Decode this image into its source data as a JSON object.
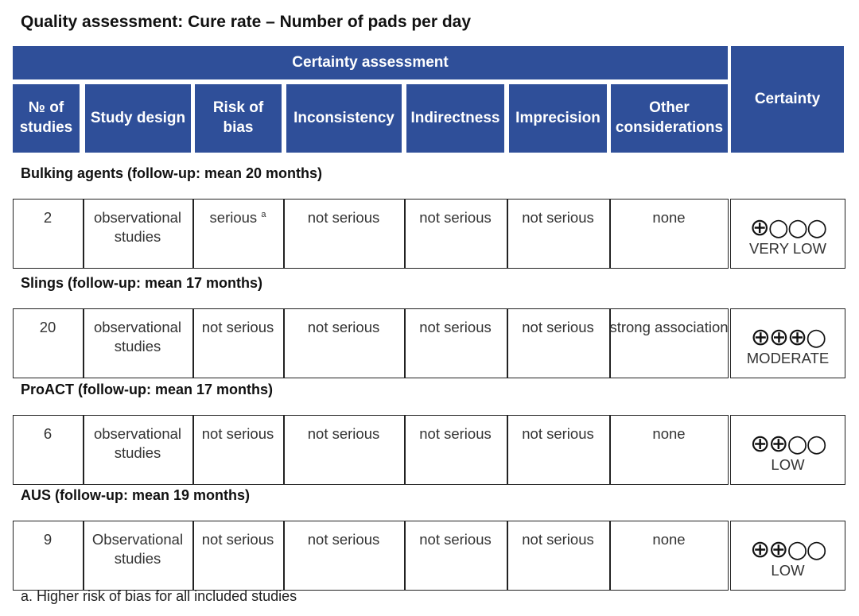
{
  "title": "Quality assessment:  Cure rate – Number of pads per day",
  "table": {
    "group_header": "Certainty assessment",
    "certainty_header": "Certainty",
    "columns": [
      "№ of studies",
      "Study design",
      "Risk of bias",
      "Inconsistency",
      "Indirectness",
      "Imprecision",
      "Other considerations"
    ],
    "groups": [
      {
        "label": "Bulking agents (follow-up: mean 20 months)",
        "cells": [
          2,
          "observational studies",
          "serious",
          "not serious",
          "not serious",
          "not serious",
          "none"
        ],
        "risk_marker": "a",
        "symbols": "⊕○○○",
        "certainty": "VERY LOW"
      },
      {
        "label": "Slings (follow-up: mean 17 months)",
        "cells": [
          20,
          "observational studies",
          "not serious",
          "not serious",
          "not serious",
          "not serious",
          "strong association"
        ],
        "symbols": "⊕⊕⊕○",
        "certainty": "MODERATE"
      },
      {
        "label": "ProACT (follow-up: mean 17 months)",
        "cells": [
          6,
          "observational studies",
          "not serious",
          "not serious",
          "not serious",
          "not serious",
          "none"
        ],
        "symbols": "⊕⊕○○",
        "certainty": "LOW"
      },
      {
        "label": "AUS (follow-up: mean 19 months)",
        "cells": [
          9,
          "Observational studies",
          "not serious",
          "not serious",
          "not serious",
          "not serious",
          "none"
        ],
        "symbols": "⊕⊕○○",
        "certainty": "LOW"
      }
    ]
  },
  "footnote": "a. Higher risk of bias for all included studies"
}
